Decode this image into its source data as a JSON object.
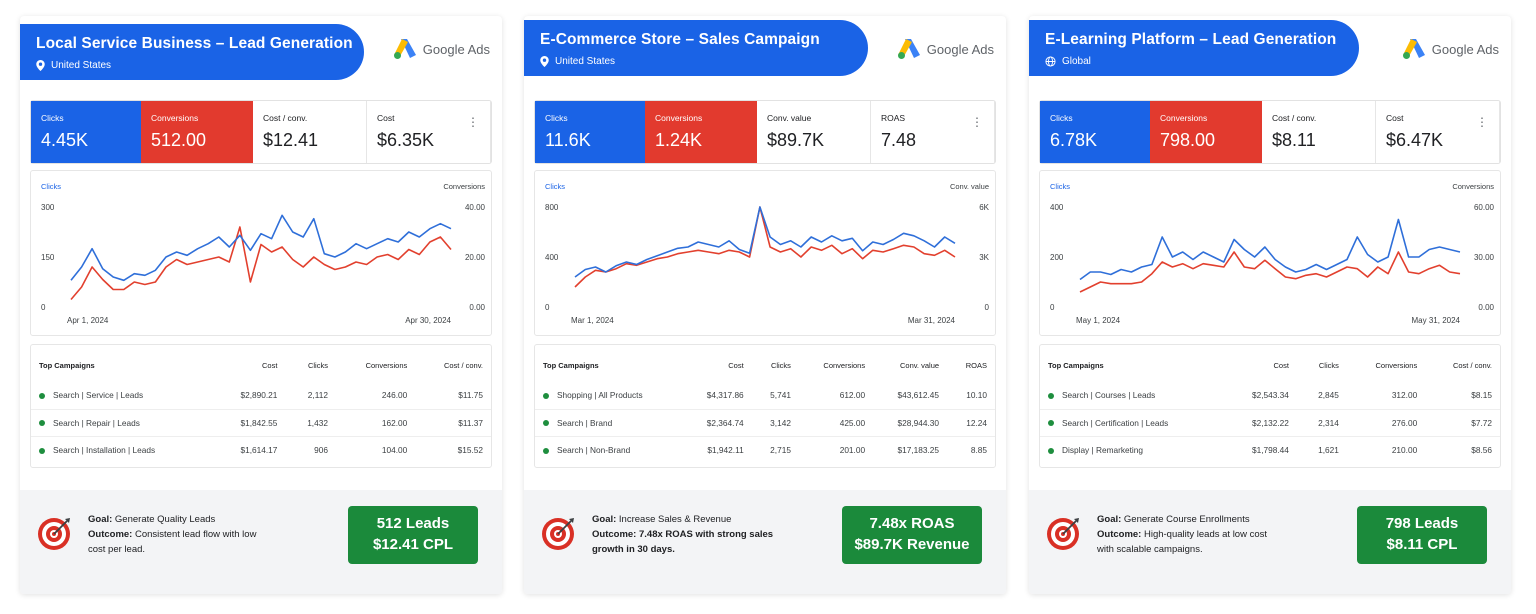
{
  "colors": {
    "blue": "#1a63e6",
    "red": "#e23a2e",
    "green": "#1b8a3b",
    "clicks_line": "#2f6fd9",
    "conv_line": "#e2402e"
  },
  "brand": {
    "name": "Google Ads"
  },
  "cards": [
    {
      "title": "Local Service Business – Lead Generation",
      "location": "United States",
      "location_icon": "location-pin-icon",
      "metrics": [
        {
          "label": "Clicks",
          "value": "4.45K"
        },
        {
          "label": "Conversions",
          "value": "512.00"
        },
        {
          "label": "Cost / conv.",
          "value": "$12.41"
        },
        {
          "label": "Cost",
          "value": "$6.35K"
        }
      ],
      "chart_data": {
        "type": "line",
        "left_label": "Clicks",
        "right_label": "Conversions",
        "left_ticks": [
          "300",
          "150",
          "0"
        ],
        "right_ticks": [
          "40.00",
          "20.00",
          "0.00"
        ],
        "ylim_left": [
          0,
          300
        ],
        "ylim_right": [
          0,
          40
        ],
        "x_start": "Apr 1, 2024",
        "x_end": "Apr 30, 2024",
        "series": [
          {
            "name": "Clicks",
            "axis": "left",
            "values": [
              80,
              120,
              175,
              115,
              90,
              80,
              100,
              95,
              110,
              150,
              165,
              155,
              175,
              190,
              210,
              180,
              215,
              170,
              220,
              205,
              275,
              225,
              210,
              265,
              160,
              150,
              165,
              190,
              175,
              190,
              205,
              195,
              225,
              210,
              235,
              250,
              235
            ]
          },
          {
            "name": "Conversions",
            "axis": "right",
            "values": [
              3,
              8,
              16,
              11,
              7,
              7,
              10,
              9,
              10,
              16,
              19,
              17,
              18,
              19,
              20,
              18,
              32,
              10,
              25,
              22,
              24,
              19,
              16,
              20,
              17,
              15,
              16,
              18,
              17,
              20,
              21,
              19,
              23,
              21,
              26,
              28,
              23
            ]
          }
        ]
      },
      "table": {
        "headers": [
          "Top Campaigns",
          "Cost",
          "Clicks",
          "Conversions",
          "Cost / conv."
        ],
        "rows": [
          [
            "Search | Service | Leads",
            "$2,890.21",
            "2,112",
            "246.00",
            "$11.75"
          ],
          [
            "Search | Repair | Leads",
            "$1,842.55",
            "1,432",
            "162.00",
            "$11.37"
          ],
          [
            "Search | Installation | Leads",
            "$1,614.17",
            "906",
            "104.00",
            "$15.52"
          ]
        ]
      },
      "goal_label": "Goal:",
      "goal": "Generate Quality Leads",
      "outcome_label": "Outcome:",
      "outcome": "Consistent lead flow with low cost per lead.",
      "result_line1": "512 Leads",
      "result_line2": "$12.41 CPL"
    },
    {
      "title": "E-Commerce Store – Sales Campaign",
      "location": "United States",
      "location_icon": "location-pin-icon",
      "metrics": [
        {
          "label": "Clicks",
          "value": "11.6K"
        },
        {
          "label": "Conversions",
          "value": "1.24K"
        },
        {
          "label": "Conv. value",
          "value": "$89.7K"
        },
        {
          "label": "ROAS",
          "value": "7.48"
        }
      ],
      "chart_data": {
        "type": "line",
        "left_label": "Clicks",
        "right_label": "Conv. value",
        "left_ticks": [
          "800",
          "400",
          "0"
        ],
        "right_ticks": [
          "6K",
          "3K",
          "0"
        ],
        "ylim_left": [
          0,
          800
        ],
        "ylim_right": [
          0,
          6000
        ],
        "x_start": "Mar 1, 2024",
        "x_end": "Mar 31, 2024",
        "series": [
          {
            "name": "Clicks",
            "axis": "left",
            "values": [
              240,
              300,
              320,
              280,
              330,
              360,
              340,
              380,
              410,
              440,
              470,
              480,
              520,
              500,
              480,
              530,
              460,
              430,
              800,
              560,
              500,
              530,
              480,
              560,
              520,
              570,
              530,
              550,
              450,
              520,
              500,
              540,
              590,
              570,
              530,
              480,
              560,
              510
            ]
          },
          {
            "name": "Conversions",
            "axis": "right",
            "values": [
              1200,
              1800,
              2200,
              2100,
              2300,
              2600,
              2500,
              2700,
              2900,
              3000,
              3200,
              3300,
              3400,
              3300,
              3200,
              3400,
              3300,
              3000,
              6000,
              3600,
              3300,
              3500,
              3000,
              3600,
              3400,
              3700,
              3200,
              3500,
              2900,
              3400,
              3300,
              3500,
              3700,
              3600,
              3200,
              3100,
              3400,
              3000
            ]
          }
        ]
      },
      "table": {
        "headers": [
          "Top Campaigns",
          "Cost",
          "Clicks",
          "Conversions",
          "Conv. value",
          "ROAS"
        ],
        "rows": [
          [
            "Shopping | All Products",
            "$4,317.86",
            "5,741",
            "612.00",
            "$43,612.45",
            "10.10"
          ],
          [
            "Search | Brand",
            "$2,364.74",
            "3,142",
            "425.00",
            "$28,944.30",
            "12.24"
          ],
          [
            "Search | Non-Brand",
            "$1,942.11",
            "2,715",
            "201.00",
            "$17,183.25",
            "8.85"
          ]
        ]
      },
      "goal_label": "Goal:",
      "goal": "Increase Sales & Revenue",
      "outcome_label": "Outcome:",
      "outcome": "7.48x ROAS with strong sales growth in 30 days.",
      "result_line1": "7.48x ROAS",
      "result_line2": "$89.7K Revenue"
    },
    {
      "title": "E-Learning Platform – Lead Generation",
      "location": "Global",
      "location_icon": "globe-icon",
      "metrics": [
        {
          "label": "Clicks",
          "value": "6.78K"
        },
        {
          "label": "Conversions",
          "value": "798.00"
        },
        {
          "label": "Cost / conv.",
          "value": "$8.11"
        },
        {
          "label": "Cost",
          "value": "$6.47K"
        }
      ],
      "chart_data": {
        "type": "line",
        "left_label": "Clicks",
        "right_label": "Conversions",
        "left_ticks": [
          "400",
          "200",
          "0"
        ],
        "right_ticks": [
          "60.00",
          "30.00",
          "0.00"
        ],
        "ylim_left": [
          0,
          400
        ],
        "ylim_right": [
          0,
          60
        ],
        "x_start": "May 1, 2024",
        "x_end": "May 31, 2024",
        "series": [
          {
            "name": "Clicks",
            "axis": "left",
            "values": [
              110,
              140,
              140,
              130,
              150,
              140,
              160,
              170,
              280,
              200,
              220,
              190,
              220,
              200,
              180,
              270,
              230,
              200,
              240,
              190,
              160,
              140,
              150,
              170,
              150,
              170,
              190,
              280,
              210,
              180,
              200,
              350,
              200,
              200,
              230,
              240,
              230,
              220
            ]
          },
          {
            "name": "Conversions",
            "axis": "right",
            "values": [
              9,
              12,
              15,
              14,
              14,
              14,
              15,
              20,
              27,
              24,
              26,
              23,
              26,
              25,
              24,
              33,
              24,
              23,
              28,
              23,
              18,
              17,
              19,
              20,
              18,
              21,
              24,
              23,
              18,
              24,
              20,
              33,
              21,
              20,
              23,
              25,
              21,
              20
            ]
          }
        ]
      },
      "table": {
        "headers": [
          "Top Campaigns",
          "Cost",
          "Clicks",
          "Conversions",
          "Cost / conv."
        ],
        "rows": [
          [
            "Search | Courses | Leads",
            "$2,543.34",
            "2,845",
            "312.00",
            "$8.15"
          ],
          [
            "Search | Certification | Leads",
            "$2,132.22",
            "2,314",
            "276.00",
            "$7.72"
          ],
          [
            "Display | Remarketing",
            "$1,798.44",
            "1,621",
            "210.00",
            "$8.56"
          ]
        ]
      },
      "goal_label": "Goal:",
      "goal": "Generate Course Enrollments",
      "outcome_label": "Outcome:",
      "outcome": "High-quality leads at low cost with scalable campaigns.",
      "result_line1": "798 Leads",
      "result_line2": "$8.11 CPL"
    }
  ]
}
